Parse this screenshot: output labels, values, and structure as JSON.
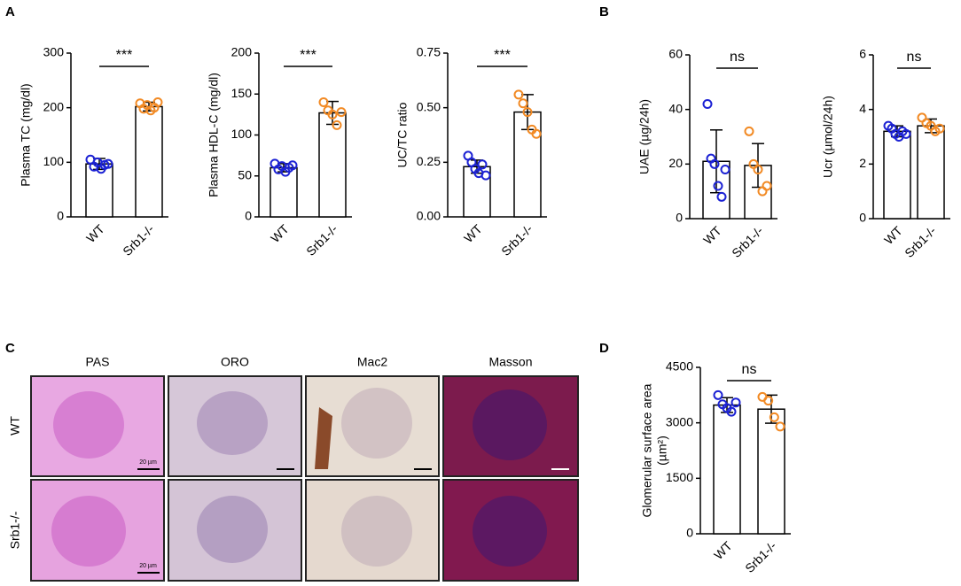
{
  "panels": [
    "A",
    "B",
    "C",
    "D"
  ],
  "micrographs": {
    "columns": [
      "PAS",
      "ORO",
      "Mac2",
      "Masson"
    ],
    "rows": [
      "WT",
      "Srb1-/-"
    ],
    "scale_bar": "20 µm"
  },
  "chart_data": [
    {
      "type": "bar",
      "ylabel": [
        "Plasma TC (mg/dl)"
      ],
      "categories": [
        "WT",
        "Srb1-/-"
      ],
      "values": [
        97,
        202
      ],
      "errors": [
        10,
        8
      ],
      "points": [
        [
          105,
          92,
          100,
          88,
          95,
          97
        ],
        [
          208,
          198,
          205,
          195,
          200,
          210
        ]
      ],
      "colors": [
        "#1c22d4",
        "#f28a24"
      ],
      "ylim": [
        0,
        300
      ],
      "yticks": [
        0,
        100,
        200,
        300
      ],
      "annotation": "***"
    },
    {
      "type": "bar",
      "ylabel": [
        "Plasma HDL-C (mg/dl)"
      ],
      "categories": [
        "WT",
        "Srb1-/-"
      ],
      "values": [
        60,
        127
      ],
      "errors": [
        5,
        14
      ],
      "points": [
        [
          65,
          58,
          62,
          55,
          60,
          63
        ],
        [
          140,
          130,
          125,
          112,
          128
        ]
      ],
      "colors": [
        "#1c22d4",
        "#f28a24"
      ],
      "ylim": [
        0,
        200
      ],
      "yticks": [
        0,
        50,
        100,
        150,
        200
      ],
      "annotation": "***"
    },
    {
      "type": "bar",
      "ylabel": [
        "UC/TC ratio"
      ],
      "categories": [
        "WT",
        "Srb1-/-"
      ],
      "values": [
        0.23,
        0.48
      ],
      "errors": [
        0.03,
        0.08
      ],
      "points": [
        [
          0.28,
          0.25,
          0.22,
          0.2,
          0.24,
          0.19
        ],
        [
          0.56,
          0.52,
          0.48,
          0.4,
          0.38
        ]
      ],
      "colors": [
        "#1c22d4",
        "#f28a24"
      ],
      "ylim": [
        0,
        0.75
      ],
      "yticks": [
        {
          "value": 0,
          "label": "0.00"
        },
        {
          "value": 0.25,
          "label": "0.25"
        },
        {
          "value": 0.5,
          "label": "0.50"
        },
        {
          "value": 0.75,
          "label": "0.75"
        }
      ],
      "annotation": "***"
    },
    {
      "type": "bar",
      "ylabel": [
        "UAE (µg/24h)"
      ],
      "categories": [
        "WT",
        "Srb1-/-"
      ],
      "values": [
        21,
        19.5
      ],
      "errors": [
        11.5,
        8
      ],
      "points": [
        [
          42,
          22,
          20,
          12,
          8,
          18
        ],
        [
          32,
          20,
          18,
          10,
          12
        ]
      ],
      "colors": [
        "#1c22d4",
        "#f28a24"
      ],
      "ylim": [
        0,
        60
      ],
      "yticks": [
        0,
        20,
        40,
        60
      ],
      "annotation": "ns"
    },
    {
      "type": "bar",
      "ylabel": [
        "Ucr (µmol/24h)"
      ],
      "categories": [
        "WT",
        "Srb1-/-"
      ],
      "values": [
        3.2,
        3.4
      ],
      "errors": [
        0.2,
        0.25
      ],
      "points": [
        [
          3.4,
          3.3,
          3.1,
          3.0,
          3.2,
          3.1
        ],
        [
          3.7,
          3.5,
          3.4,
          3.2,
          3.3
        ]
      ],
      "colors": [
        "#1c22d4",
        "#f28a24"
      ],
      "ylim": [
        0,
        6
      ],
      "yticks": [
        0,
        2,
        4,
        6
      ],
      "annotation": "ns"
    },
    {
      "type": "bar",
      "ylabel": [
        "Glomerular surface area",
        "(µm²)"
      ],
      "categories": [
        "WT",
        "Srb1-/-"
      ],
      "values": [
        3480,
        3370
      ],
      "errors": [
        200,
        380
      ],
      "points": [
        [
          3750,
          3500,
          3400,
          3300,
          3550
        ],
        [
          3700,
          3600,
          3150,
          2900
        ]
      ],
      "colors": [
        "#1c22d4",
        "#f28a24"
      ],
      "ylim": [
        0,
        4500
      ],
      "yticks": [
        0,
        1500,
        3000,
        4500
      ],
      "annotation": "ns"
    }
  ]
}
